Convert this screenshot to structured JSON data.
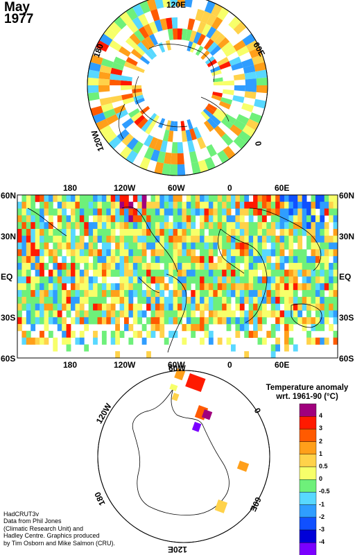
{
  "header": {
    "month": "May",
    "year": "1977"
  },
  "north_polar": {
    "labels": {
      "top": "120E",
      "right_upper": "60E",
      "right": "0",
      "left_upper": "180",
      "left_lower": "120W"
    }
  },
  "equirect": {
    "top_lon_labels": [
      "180",
      "120W",
      "60W",
      "0",
      "60E"
    ],
    "bottom_lon_labels": [
      "180",
      "120W",
      "60W",
      "0",
      "60E"
    ],
    "left_lat_labels": [
      "60N",
      "30N",
      "EQ",
      "30S",
      "60S"
    ],
    "right_lat_labels": [
      "60N",
      "30N",
      "EQ",
      "30S",
      "60S"
    ]
  },
  "south_polar": {
    "labels": {
      "top": "60W",
      "upper_left": "120W",
      "right_upper": "0",
      "left_lower": "180",
      "right_lower": "60E",
      "bottom": "120E"
    }
  },
  "legend": {
    "title_line1": "Temperature anomaly",
    "title_line2": "wrt. 1961-90  (°C)",
    "ticks": [
      "4",
      "3",
      "2",
      "1",
      "0.5",
      "0",
      "-0.5",
      "-1",
      "-2",
      "-3",
      "-4"
    ],
    "colors": [
      "#a0007d",
      "#ff1a00",
      "#ff5a00",
      "#ff9f1a",
      "#ffd24a",
      "#f7ff6a",
      "#6ef07a",
      "#58d8ff",
      "#2f9dff",
      "#1050ff",
      "#0000d8",
      "#7a00ff"
    ]
  },
  "credit": {
    "line1": "HadCRUT3v",
    "line2": "Data from Phil Jones",
    "line3": "(Climatic Research Unit) and",
    "line4": "Hadley Centre.  Graphics produced",
    "line5": "by Tim Osborn and Mike Salmon (CRU)."
  }
}
